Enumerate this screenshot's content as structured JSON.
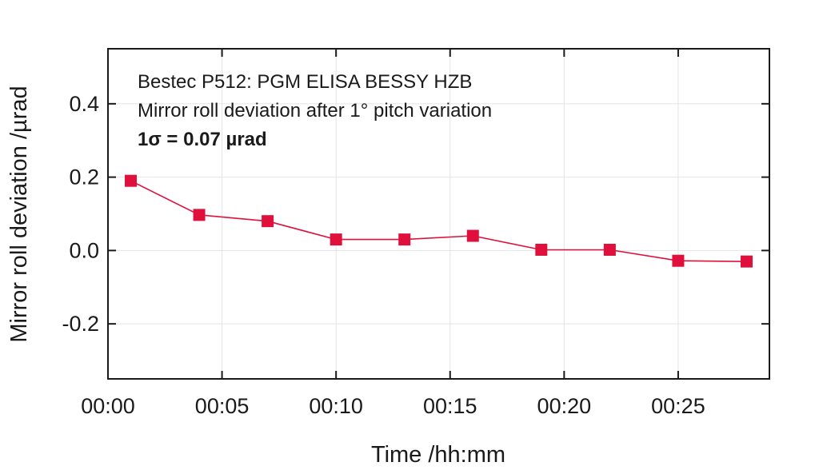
{
  "chart_data": {
    "type": "line",
    "xlabel": "Time /hh:mm",
    "ylabel": "Mirror roll deviation /µrad",
    "xlim": [
      0,
      29
    ],
    "ylim": [
      -0.35,
      0.55
    ],
    "x_ticks": [
      0,
      5,
      10,
      15,
      20,
      25
    ],
    "x_tick_labels": [
      "00:00",
      "00:05",
      "00:10",
      "00:15",
      "00:20",
      "00:25"
    ],
    "y_ticks": [
      -0.2,
      0.0,
      0.2,
      0.4
    ],
    "y_tick_labels": [
      "-0.2",
      "0.0",
      "0.2",
      "0.4"
    ],
    "grid": true,
    "annotations": [
      "Bestec P512: PGM ELISA BESSY HZB",
      "Mirror roll deviation after 1° pitch variation",
      "1σ = 0.07 µrad"
    ],
    "series": [
      {
        "color": "#e0103c",
        "marker": "square",
        "x": [
          "00:01",
          "00:04",
          "00:07",
          "00:10",
          "00:13",
          "00:16",
          "00:19",
          "00:22",
          "00:25",
          "00:28"
        ],
        "values": [
          0.19,
          0.097,
          0.08,
          0.03,
          0.03,
          0.04,
          0.002,
          0.002,
          -0.028,
          -0.03
        ]
      }
    ]
  }
}
